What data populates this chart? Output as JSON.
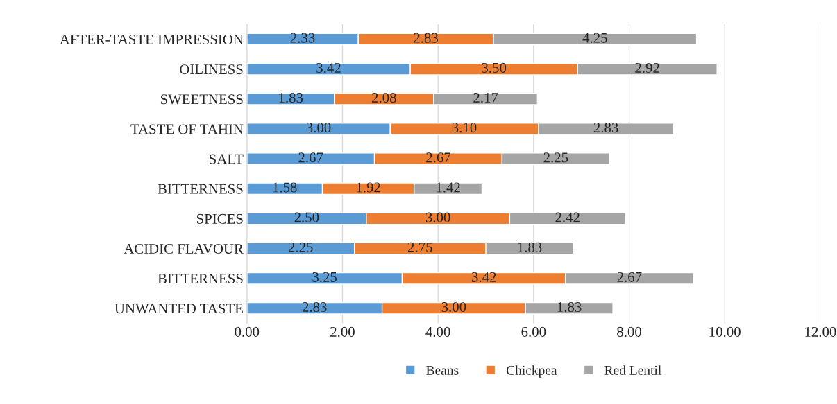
{
  "chart_data": {
    "type": "bar",
    "orientation": "horizontal",
    "stacked": true,
    "categories": [
      "AFTER-TASTE IMPRESSION",
      "OILINESS",
      "SWEETNESS",
      "TASTE OF TAHIN",
      "SALT",
      "BITTERNESS",
      "SPICES",
      "ACIDIC FLAVOUR",
      "BITTERNESS",
      "UNWANTED TASTE"
    ],
    "series": [
      {
        "name": "Beans",
        "color": "#5b9bd5",
        "values": [
          2.33,
          3.42,
          1.83,
          3.0,
          2.67,
          1.58,
          2.5,
          2.25,
          3.25,
          2.83
        ],
        "value_labels": [
          "2.33",
          "3.42",
          "1.83",
          "3.00",
          "2.67",
          "1.58",
          "2.50",
          "2.25",
          "3.25",
          "2.83"
        ]
      },
      {
        "name": "Chickpea",
        "color": "#ed7d31",
        "values": [
          2.83,
          3.5,
          2.08,
          3.1,
          2.67,
          1.92,
          3.0,
          2.75,
          3.42,
          3.0
        ],
        "value_labels": [
          "2.83",
          "3.50",
          "2.08",
          "3.10",
          "2.67",
          "1.92",
          "3.00",
          "2.75",
          "3.42",
          "3.00"
        ]
      },
      {
        "name": "Red Lentil",
        "color": "#a5a5a5",
        "values": [
          4.25,
          2.92,
          2.17,
          2.83,
          2.25,
          1.42,
          2.42,
          1.83,
          2.67,
          1.83
        ],
        "value_labels": [
          "4.25",
          "2.92",
          "2.17",
          "2.83",
          "2.25",
          "1.42",
          "2.42",
          "1.83",
          "2.67",
          "1.83"
        ]
      }
    ],
    "xlim": [
      0,
      12
    ],
    "xticks": [
      {
        "value": 0,
        "label": "0.00"
      },
      {
        "value": 2,
        "label": "2.00"
      },
      {
        "value": 4,
        "label": "4.00"
      },
      {
        "value": 6,
        "label": "6.00"
      },
      {
        "value": 8,
        "label": "8.00"
      },
      {
        "value": 10,
        "label": "10.00"
      },
      {
        "value": 12,
        "label": "12.00"
      }
    ],
    "grid": "x",
    "legend": "bottom"
  }
}
